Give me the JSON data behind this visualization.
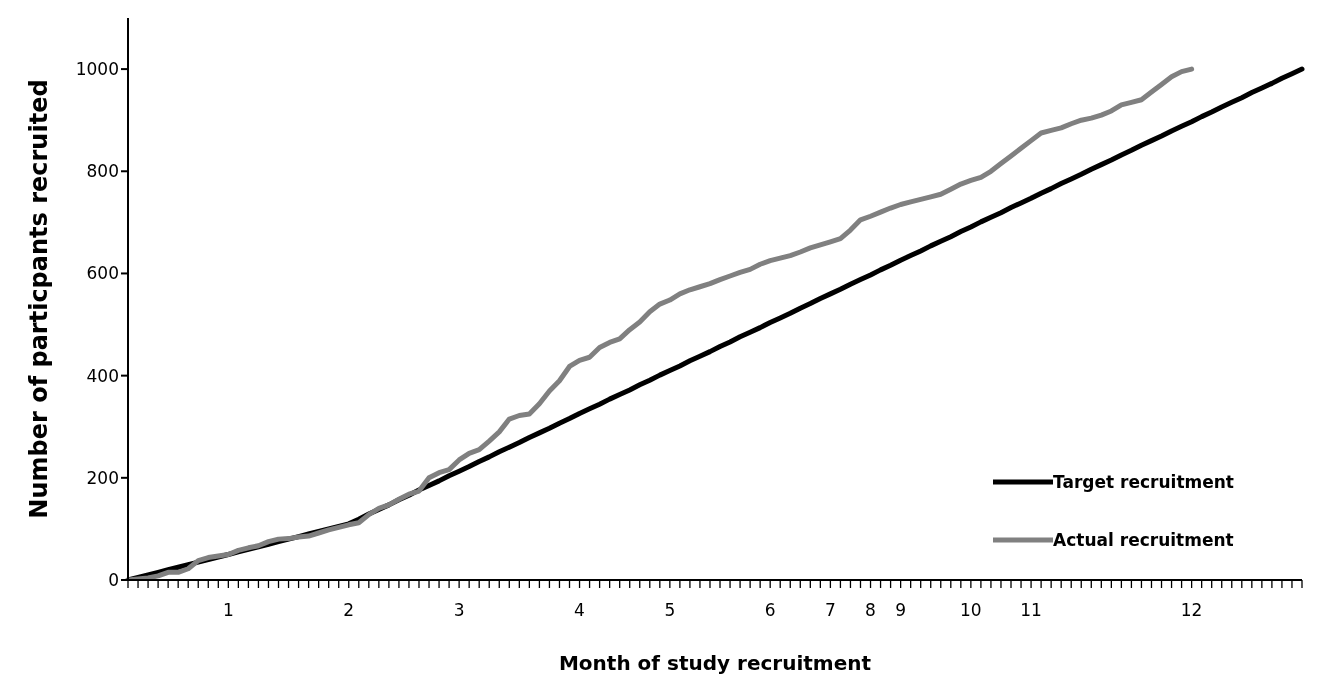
{
  "chart_data": {
    "type": "line",
    "xlabel": "Month of study recruitment",
    "ylabel": "Number of particpants recruited",
    "categories": [
      null,
      null,
      null,
      null,
      null,
      null,
      null,
      null,
      null,
      null,
      "1",
      null,
      null,
      null,
      null,
      null,
      null,
      null,
      null,
      null,
      null,
      null,
      "2",
      null,
      null,
      null,
      null,
      null,
      null,
      null,
      null,
      null,
      null,
      "3",
      null,
      null,
      null,
      null,
      null,
      null,
      null,
      null,
      null,
      null,
      null,
      "4",
      null,
      null,
      null,
      null,
      null,
      null,
      null,
      null,
      "5",
      null,
      null,
      null,
      null,
      null,
      null,
      null,
      null,
      null,
      "6",
      null,
      null,
      null,
      null,
      null,
      "7",
      null,
      null,
      null,
      "8",
      null,
      null,
      "9",
      null,
      null,
      null,
      null,
      null,
      null,
      "10",
      null,
      null,
      null,
      null,
      null,
      "11",
      null,
      null,
      null,
      null,
      null,
      null,
      null,
      null,
      null,
      null,
      null,
      null,
      null,
      null,
      null,
      "12",
      null,
      null,
      null,
      null,
      null,
      null,
      null,
      null,
      null,
      null,
      null
    ],
    "series": [
      {
        "name": "Target recruitment",
        "color": "#000000",
        "values": [
          0,
          5,
          10,
          15,
          20,
          25,
          30,
          35,
          40,
          45,
          50,
          55,
          60,
          65,
          70,
          75,
          80,
          85,
          90,
          95,
          100,
          105,
          110,
          119,
          129,
          138,
          147,
          157,
          166,
          176,
          185,
          194,
          204,
          213,
          222,
          232,
          241,
          251,
          260,
          269,
          279,
          288,
          297,
          307,
          316,
          326,
          335,
          344,
          354,
          363,
          372,
          382,
          391,
          401,
          410,
          419,
          429,
          438,
          447,
          457,
          466,
          476,
          485,
          494,
          504,
          513,
          522,
          532,
          541,
          551,
          560,
          569,
          579,
          588,
          597,
          607,
          616,
          626,
          635,
          644,
          654,
          663,
          672,
          682,
          691,
          701,
          710,
          719,
          729,
          738,
          747,
          757,
          766,
          776,
          785,
          794,
          804,
          813,
          822,
          832,
          841,
          851,
          860,
          869,
          879,
          888,
          897,
          907,
          916,
          926,
          935,
          944,
          954,
          963,
          972,
          982,
          991,
          1000
        ]
      },
      {
        "name": "Actual recruitment",
        "color": "#808080",
        "values": [
          0,
          2,
          4,
          8,
          15,
          15,
          22,
          38,
          44,
          47,
          50,
          58,
          63,
          67,
          75,
          80,
          81,
          84,
          86,
          92,
          98,
          103,
          108,
          112,
          128,
          140,
          147,
          158,
          168,
          174,
          200,
          210,
          216,
          235,
          248,
          255,
          272,
          290,
          315,
          322,
          325,
          345,
          370,
          390,
          418,
          430,
          436,
          455,
          465,
          472,
          490,
          505,
          525,
          540,
          548,
          560,
          568,
          574,
          580,
          588,
          595,
          602,
          608,
          618,
          625,
          630,
          635,
          642,
          650,
          656,
          662,
          668,
          685,
          705,
          712,
          720,
          728,
          735,
          740,
          745,
          750,
          755,
          765,
          775,
          782,
          788,
          800,
          815,
          830,
          845,
          860,
          875,
          880,
          885,
          893,
          900,
          904,
          910,
          918,
          930,
          935,
          940,
          955,
          970,
          985,
          995,
          1000,
          null,
          null,
          null,
          null,
          null,
          null,
          null,
          null,
          null,
          null,
          null
        ]
      }
    ],
    "ylim": [
      0,
      1100
    ],
    "yticks": [
      0,
      200,
      400,
      600,
      800,
      1000
    ],
    "grid": false,
    "legend": "bottom right",
    "marker": "none",
    "line_style": "solid"
  }
}
